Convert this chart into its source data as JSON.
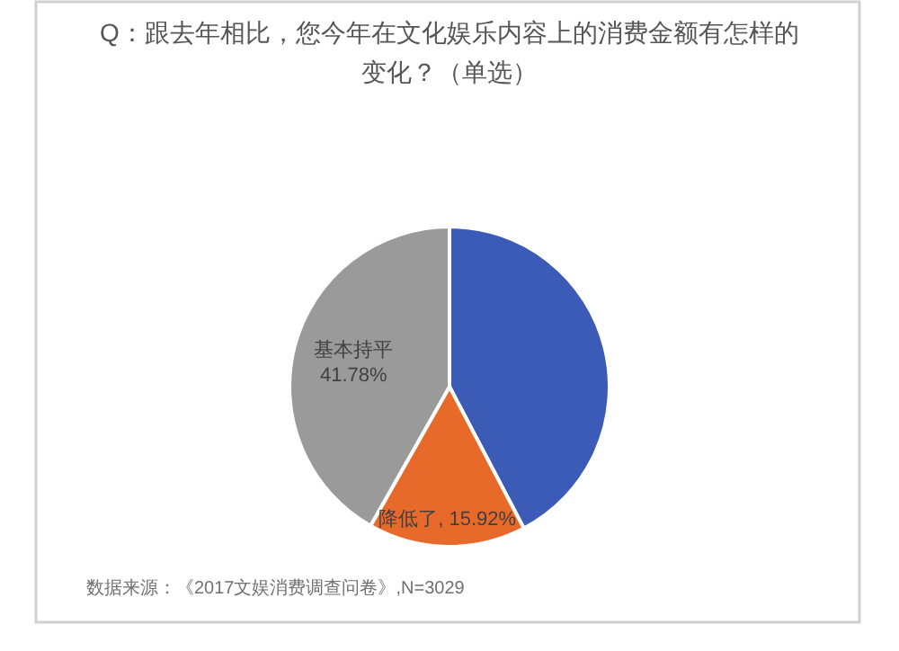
{
  "chart_data": {
    "type": "pie",
    "title": "Q：跟去年相比，您今年在文化娱乐内容上的消费金额有怎样的变化？（单选）",
    "categories": [
      null,
      "降低了",
      "基本持平"
    ],
    "values": [
      42.3,
      15.92,
      41.78
    ],
    "colors": [
      "#3b5bb7",
      "#e86a2a",
      "#9a9a9a"
    ],
    "value_labels": [
      null,
      "15.92%",
      "41.78%"
    ],
    "annotations": [
      "数据来源：《2017文娱消费调查问卷》,N=3029"
    ]
  }
}
